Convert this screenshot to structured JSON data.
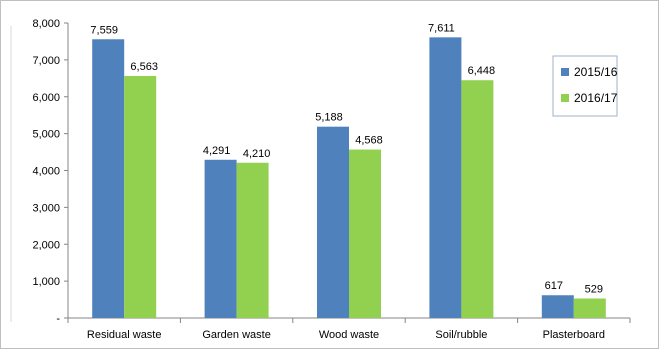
{
  "chart_data": {
    "type": "bar",
    "categories": [
      "Residual waste",
      "Garden waste",
      "Wood waste",
      "Soil/rubble",
      "Plasterboard"
    ],
    "series": [
      {
        "name": "2015/16",
        "values": [
          7559,
          4291,
          5188,
          7611,
          617
        ],
        "labels": [
          "7,559",
          "4,291",
          "5,188",
          "7,611",
          "617"
        ],
        "color": "#4F81BD"
      },
      {
        "name": "2016/17",
        "values": [
          6563,
          4210,
          4568,
          6448,
          529
        ],
        "labels": [
          "6,563",
          "4,210",
          "4,568",
          "6,448",
          "529"
        ],
        "color": "#92D050"
      }
    ],
    "yticks": [
      0,
      1000,
      2000,
      3000,
      4000,
      5000,
      6000,
      7000,
      8000
    ],
    "ytick_labels": [
      "-",
      "1,000",
      "2,000",
      "3,000",
      "4,000",
      "5,000",
      "6,000",
      "7,000",
      "8,000"
    ],
    "ylim": [
      0,
      8000
    ],
    "title": "",
    "xlabel": "",
    "ylabel": "",
    "grid": false,
    "legend_position": "right"
  }
}
